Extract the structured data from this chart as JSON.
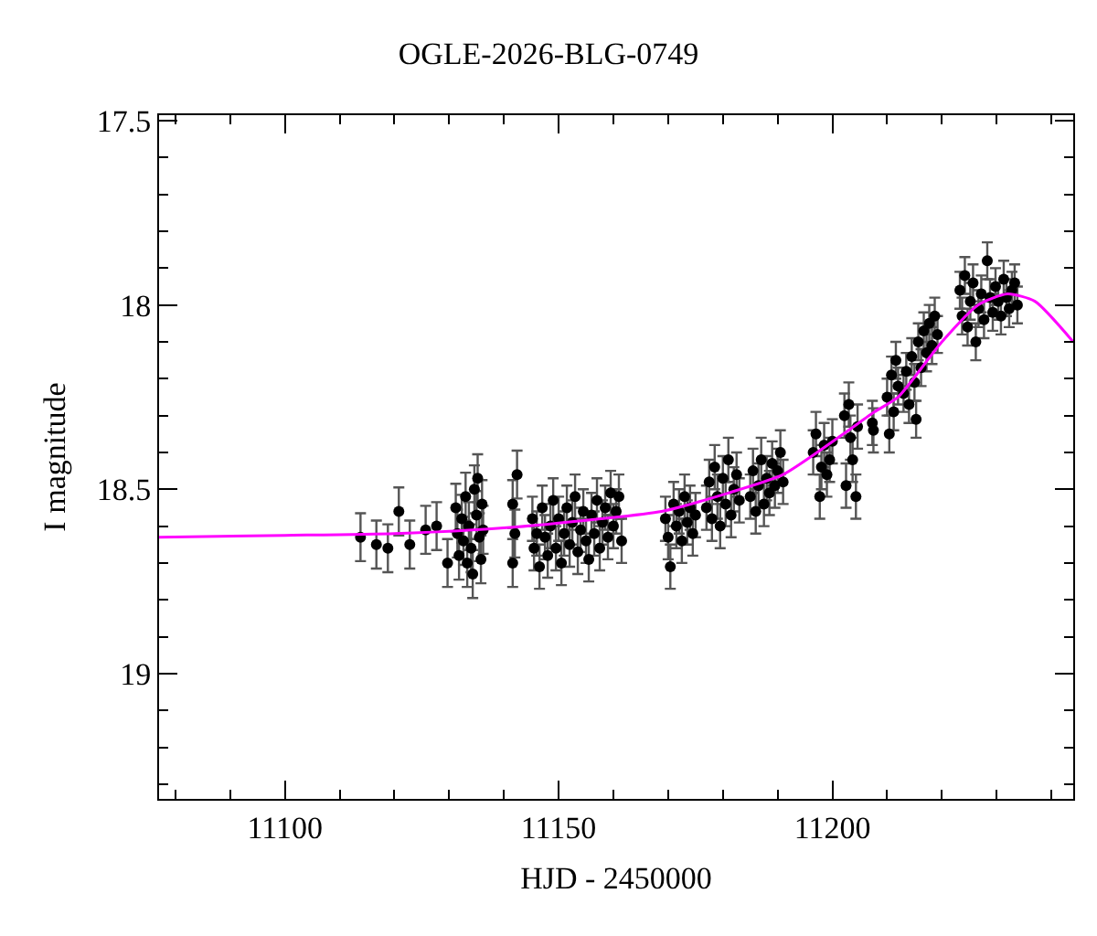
{
  "chart_data": {
    "type": "scatter",
    "title": "OGLE-2026-BLG-0749",
    "xlabel": "HJD - 2450000",
    "ylabel": "I magnitude",
    "xlim": [
      11077,
      11244
    ],
    "ylim": [
      19.34,
      17.485
    ],
    "xticks": [
      {
        "value": 11080,
        "label": null
      },
      {
        "value": 11090,
        "label": null
      },
      11100,
      {
        "value": 11110,
        "label": null
      },
      {
        "value": 11120,
        "label": null
      },
      {
        "value": 11130,
        "label": null
      },
      {
        "value": 11140,
        "label": null
      },
      11150,
      {
        "value": 11160,
        "label": null
      },
      {
        "value": 11170,
        "label": null
      },
      {
        "value": 11180,
        "label": null
      },
      {
        "value": 11190,
        "label": null
      },
      11200,
      {
        "value": 11210,
        "label": null
      },
      {
        "value": 11220,
        "label": null
      },
      {
        "value": 11230,
        "label": null
      },
      {
        "value": 11240,
        "label": null
      }
    ],
    "yticks": [
      17.5,
      {
        "value": 17.6,
        "label": null
      },
      {
        "value": 17.7,
        "label": null
      },
      {
        "value": 17.8,
        "label": null
      },
      {
        "value": 17.9,
        "label": null
      },
      18,
      {
        "value": 18.1,
        "label": null
      },
      {
        "value": 18.2,
        "label": null
      },
      {
        "value": 18.3,
        "label": null
      },
      {
        "value": 18.4,
        "label": null
      },
      18.5,
      {
        "value": 18.6,
        "label": null
      },
      {
        "value": 18.7,
        "label": null
      },
      {
        "value": 18.8,
        "label": null
      },
      {
        "value": 18.9,
        "label": null
      },
      19,
      {
        "value": 19.1,
        "label": null
      },
      {
        "value": 19.2,
        "label": null
      },
      {
        "value": 19.3,
        "label": null
      }
    ],
    "grid": false,
    "legend": false,
    "series": [
      {
        "type": "scatter",
        "color": "#000000",
        "marker": "circle",
        "x": [
          11113.8,
          11116.7,
          11118.8,
          11120.8,
          11122.8,
          11125.7,
          11127.7,
          11129.7,
          11131.2,
          11131.5,
          11131.8,
          11132.3,
          11132.6,
          11133,
          11133.3,
          11133.6,
          11134,
          11134.3,
          11134.6,
          11135,
          11135.2,
          11135.5,
          11135.8,
          11136,
          11136.2,
          11141.6,
          11141.6,
          11142.4,
          11142,
          11145.2,
          11145.5,
          11146,
          11146.5,
          11147,
          11147.5,
          11148,
          11148.5,
          11149,
          11149.5,
          11150,
          11150.5,
          11151,
          11151.5,
          11152,
          11152.5,
          11153,
          11153.5,
          11154,
          11154.5,
          11155,
          11155.5,
          11156,
          11156.5,
          11157,
          11157.5,
          11158,
          11158.5,
          11159,
          11159.5,
          11160,
          11160.5,
          11161,
          11161.5,
          11169.5,
          11170,
          11170.4,
          11171,
          11171.5,
          11172,
          11172.5,
          11173,
          11173.5,
          11174,
          11174.5,
          11175,
          11177,
          11177.5,
          11178,
          11178.5,
          11179,
          11179.5,
          11180,
          11180.5,
          11181,
          11181.5,
          11182,
          11182.5,
          11183,
          11185,
          11185.5,
          11186,
          11186.5,
          11187,
          11187.5,
          11188,
          11188.5,
          11189,
          11189.5,
          11190,
          11190.5,
          11191,
          11196.5,
          11197,
          11197.7,
          11198,
          11198.5,
          11199,
          11199.5,
          11200,
          11202.2,
          11202.5,
          11203,
          11203.3,
          11203.7,
          11204.3,
          11204.6,
          11207.3,
          11207.5,
          11210,
          11210.4,
          11210.8,
          11211.2,
          11211.6,
          11212,
          11213,
          11213.5,
          11214,
          11214.5,
          11215,
          11215.3,
          11215.7,
          11216.2,
          11216.7,
          11217.2,
          11217.7,
          11218.2,
          11218.7,
          11219.2,
          11223.3,
          11223.7,
          11224.2,
          11224.7,
          11225.2,
          11225.7,
          11226.2,
          11226.7,
          11227.2,
          11227.7,
          11228.3,
          11228.8,
          11229.3,
          11229.8,
          11230.3,
          11230.8,
          11231.3,
          11231.8,
          11232.3,
          11232.8,
          11233.3,
          11233.8
        ],
        "values": [
          18.63,
          18.65,
          18.66,
          18.56,
          18.65,
          18.61,
          18.6,
          18.7,
          18.55,
          18.62,
          18.68,
          18.58,
          18.64,
          18.52,
          18.7,
          18.6,
          18.66,
          18.73,
          18.5,
          18.57,
          18.47,
          18.63,
          18.69,
          18.54,
          18.61,
          18.54,
          18.7,
          18.46,
          18.62,
          18.58,
          18.66,
          18.62,
          18.71,
          18.55,
          18.63,
          18.68,
          18.6,
          18.53,
          18.66,
          18.58,
          18.7,
          18.62,
          18.55,
          18.65,
          18.59,
          18.52,
          18.67,
          18.61,
          18.56,
          18.64,
          18.69,
          18.57,
          18.62,
          18.53,
          18.66,
          18.59,
          18.55,
          18.63,
          18.51,
          18.6,
          18.56,
          18.52,
          18.64,
          18.58,
          18.63,
          18.71,
          18.54,
          18.6,
          18.56,
          18.64,
          18.52,
          18.59,
          18.55,
          18.62,
          18.57,
          18.55,
          18.48,
          18.58,
          18.44,
          18.52,
          18.6,
          18.47,
          18.54,
          18.42,
          18.57,
          18.5,
          18.46,
          18.53,
          18.52,
          18.45,
          18.56,
          18.49,
          18.42,
          18.54,
          18.47,
          18.51,
          18.43,
          18.49,
          18.45,
          18.4,
          18.48,
          18.4,
          18.35,
          18.52,
          18.44,
          18.38,
          18.46,
          18.42,
          18.37,
          18.3,
          18.49,
          18.27,
          18.36,
          18.42,
          18.52,
          18.33,
          18.32,
          18.34,
          18.25,
          18.35,
          18.19,
          18.29,
          18.15,
          18.22,
          18.24,
          18.18,
          18.27,
          18.14,
          18.21,
          18.31,
          18.1,
          18.17,
          18.07,
          18.13,
          18.05,
          18.11,
          18.03,
          18.08,
          17.96,
          18.03,
          17.92,
          18.06,
          17.99,
          17.94,
          18.1,
          18.01,
          17.97,
          18.04,
          17.88,
          17.98,
          18.02,
          17.95,
          17.99,
          18.03,
          17.93,
          17.98,
          18.01,
          17.96,
          17.94,
          18
        ],
        "errors": [
          0.065,
          0.065,
          0.065,
          0.065,
          0.065,
          0.065,
          0.065,
          0.065,
          0.065,
          0.065,
          0.065,
          0.065,
          0.065,
          0.065,
          0.065,
          0.065,
          0.065,
          0.065,
          0.065,
          0.065,
          0.065,
          0.065,
          0.065,
          0.065,
          0.065,
          0.065,
          0.065,
          0.065,
          0.065,
          0.06,
          0.06,
          0.06,
          0.06,
          0.06,
          0.06,
          0.06,
          0.06,
          0.06,
          0.06,
          0.06,
          0.06,
          0.06,
          0.06,
          0.06,
          0.06,
          0.06,
          0.06,
          0.06,
          0.06,
          0.06,
          0.06,
          0.06,
          0.06,
          0.06,
          0.06,
          0.06,
          0.06,
          0.06,
          0.06,
          0.06,
          0.06,
          0.06,
          0.06,
          0.06,
          0.06,
          0.06,
          0.06,
          0.06,
          0.06,
          0.06,
          0.06,
          0.06,
          0.06,
          0.06,
          0.06,
          0.06,
          0.06,
          0.06,
          0.06,
          0.06,
          0.06,
          0.06,
          0.06,
          0.06,
          0.06,
          0.06,
          0.06,
          0.06,
          0.06,
          0.06,
          0.06,
          0.06,
          0.06,
          0.06,
          0.06,
          0.06,
          0.06,
          0.06,
          0.06,
          0.06,
          0.06,
          0.06,
          0.06,
          0.06,
          0.06,
          0.06,
          0.06,
          0.06,
          0.06,
          0.06,
          0.06,
          0.06,
          0.06,
          0.06,
          0.06,
          0.06,
          0.06,
          0.06,
          0.05,
          0.05,
          0.05,
          0.05,
          0.05,
          0.05,
          0.05,
          0.05,
          0.05,
          0.05,
          0.05,
          0.05,
          0.05,
          0.05,
          0.05,
          0.05,
          0.05,
          0.05,
          0.05,
          0.05,
          0.05,
          0.05,
          0.05,
          0.05,
          0.05,
          0.05,
          0.05,
          0.05,
          0.05,
          0.05,
          0.05,
          0.05,
          0.05,
          0.05,
          0.05,
          0.05,
          0.05,
          0.05,
          0.05,
          0.05,
          0.05,
          0.05
        ]
      },
      {
        "type": "line",
        "color": "#ff00ff",
        "marker": "none",
        "line_style": "solid",
        "x": [
          11077,
          11100,
          11120,
          11140,
          11157.7,
          11168.8,
          11181,
          11191,
          11202,
          11207.7,
          11212,
          11220,
          11226.6,
          11232,
          11237,
          11244
        ],
        "values": [
          18.63,
          18.625,
          18.62,
          18.605,
          18.58,
          18.56,
          18.51,
          18.46,
          18.35,
          18.29,
          18.25,
          18.1,
          18,
          17.97,
          17.99,
          18.1
        ]
      }
    ]
  }
}
